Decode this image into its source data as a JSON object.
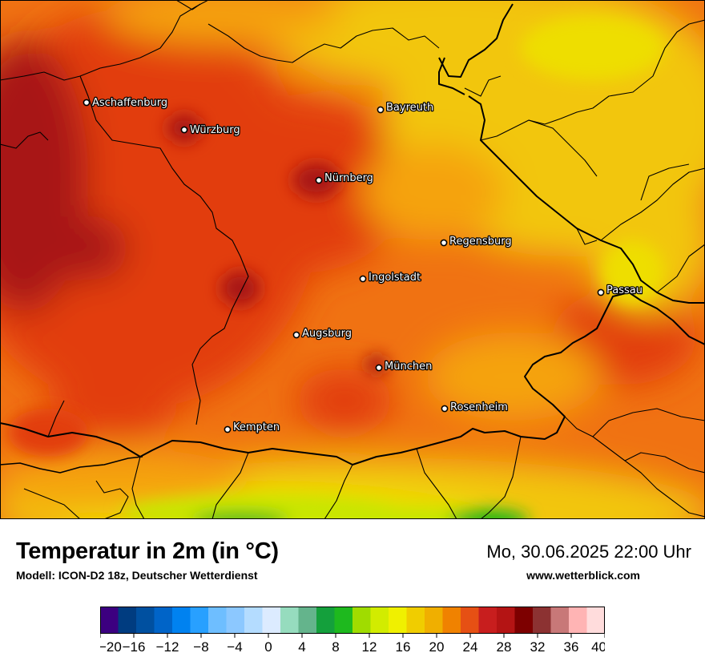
{
  "map": {
    "cities": [
      {
        "name": "Aschaffenburg"
      },
      {
        "name": "Würzburg"
      },
      {
        "name": "Bayreuth"
      },
      {
        "name": "Nürnberg"
      },
      {
        "name": "Regensburg"
      },
      {
        "name": "Ingolstadt"
      },
      {
        "name": "Passau"
      },
      {
        "name": "Augsburg"
      },
      {
        "name": "München"
      },
      {
        "name": "Rosenheim"
      },
      {
        "name": "Kempten"
      }
    ],
    "colors": {
      "hot_dark": "#a81818",
      "hot": "#e23c0f",
      "warm": "#f07212",
      "mild": "#f5a30f",
      "yellow": "#f2c60e",
      "yellow_light": "#eede00",
      "lime": "#c8e600",
      "green": "#1fb21f",
      "border": "#000000"
    }
  },
  "footer": {
    "title": "Temperatur in 2m (in °C)",
    "subtitle": "Modell: ICON-D2 18z, Deutscher Wetterdienst",
    "datetime": "Mo, 30.06.2025 22:00 Uhr",
    "website": "www.wetterblick.com"
  },
  "legend": {
    "ticks": [
      "−20",
      "−16",
      "−12",
      "−8",
      "−4",
      "0",
      "4",
      "8",
      "12",
      "16",
      "20",
      "24",
      "28",
      "32",
      "36",
      "40"
    ],
    "colors": [
      "#3c0080",
      "#003c80",
      "#0050a0",
      "#0064c8",
      "#0082f0",
      "#28a0ff",
      "#6ebeff",
      "#8cc8ff",
      "#b4dcff",
      "#dcebff",
      "#96dcbe",
      "#64b48c",
      "#14a03c",
      "#1eb91e",
      "#a0dc00",
      "#d2ec00",
      "#f0f000",
      "#f0cd00",
      "#f0af00",
      "#f08200",
      "#e65014",
      "#c81e1e",
      "#b41414",
      "#7d0000",
      "#8c3232",
      "#c87878",
      "#ffb4b4",
      "#ffdcdc"
    ]
  }
}
